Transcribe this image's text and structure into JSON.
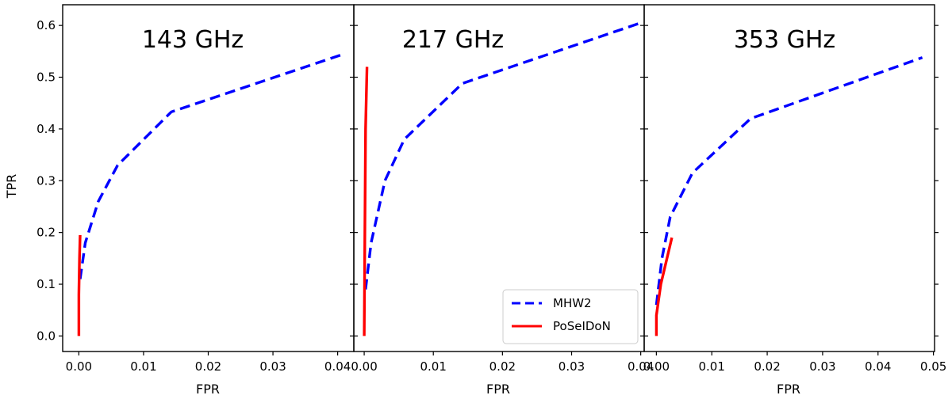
{
  "chart_data": [
    {
      "type": "line",
      "title": "143 GHz",
      "xlabel": "FPR",
      "ylabel": "TPR",
      "xlim": [
        -0.0025,
        0.0425
      ],
      "ylim": [
        -0.03,
        0.64
      ],
      "xticks": [
        0.0,
        0.01,
        0.02,
        0.03,
        0.04
      ],
      "xtick_labels": [
        "0.00",
        "0.01",
        "0.02",
        "0.03",
        "0.04"
      ],
      "yticks": [
        0.0,
        0.1,
        0.2,
        0.3,
        0.4,
        0.5,
        0.6
      ],
      "ytick_labels": [
        "0.0",
        "0.1",
        "0.2",
        "0.3",
        "0.4",
        "0.5",
        "0.6"
      ],
      "series": [
        {
          "name": "MHW2",
          "style": "dashed",
          "color": "#0000ff",
          "x": [
            0.0002,
            0.001,
            0.003,
            0.006,
            0.0143,
            0.041
          ],
          "y": [
            0.11,
            0.18,
            0.26,
            0.33,
            0.433,
            0.545
          ]
        },
        {
          "name": "PoSeIDoN",
          "style": "solid",
          "color": "#ff0000",
          "x": [
            0.0,
            0.0,
            0.0001,
            0.0002
          ],
          "y": [
            0.0,
            0.08,
            0.15,
            0.195
          ]
        }
      ]
    },
    {
      "type": "line",
      "title": "217 GHz",
      "xlabel": "FPR",
      "ylabel": "",
      "xlim": [
        -0.0015,
        0.0405
      ],
      "ylim": [
        -0.03,
        0.64
      ],
      "xticks": [
        0.0,
        0.01,
        0.02,
        0.03,
        0.04
      ],
      "xtick_labels": [
        "0.00",
        "0.01",
        "0.02",
        "0.03",
        "0.04"
      ],
      "yticks": [
        0.0,
        0.1,
        0.2,
        0.3,
        0.4,
        0.5,
        0.6
      ],
      "ytick_labels": [
        "",
        "",
        "",
        "",
        "",
        "",
        ""
      ],
      "legend": {
        "location": "lower right",
        "entries": [
          "MHW2",
          "PoSeIDoN"
        ]
      },
      "series": [
        {
          "name": "MHW2",
          "style": "dashed",
          "color": "#0000ff",
          "x": [
            0.0002,
            0.001,
            0.003,
            0.0058,
            0.0142,
            0.04
          ],
          "y": [
            0.09,
            0.18,
            0.3,
            0.38,
            0.488,
            0.605
          ]
        },
        {
          "name": "PoSeIDoN",
          "style": "solid",
          "color": "#ff0000",
          "x": [
            0.0,
            0.0001,
            0.0002,
            0.0004
          ],
          "y": [
            0.0,
            0.2,
            0.4,
            0.52
          ]
        }
      ]
    },
    {
      "type": "line",
      "title": "353 GHz",
      "xlabel": "FPR",
      "ylabel": "",
      "xlim": [
        -0.0022,
        0.0502
      ],
      "ylim": [
        -0.03,
        0.64
      ],
      "xticks": [
        0.0,
        0.01,
        0.02,
        0.03,
        0.04,
        0.05
      ],
      "xtick_labels": [
        "0.00",
        "0.01",
        "0.02",
        "0.03",
        "0.04",
        "0.05"
      ],
      "yticks": [
        0.0,
        0.1,
        0.2,
        0.3,
        0.4,
        0.5,
        0.6
      ],
      "ytick_labels": [
        "",
        "",
        "",
        "",
        "",
        "",
        ""
      ],
      "series": [
        {
          "name": "MHW2",
          "style": "dashed",
          "color": "#0000ff",
          "x": [
            0.0,
            0.001,
            0.0025,
            0.0065,
            0.017,
            0.048
          ],
          "y": [
            0.06,
            0.15,
            0.23,
            0.315,
            0.42,
            0.538
          ]
        },
        {
          "name": "PoSeIDoN",
          "style": "solid",
          "color": "#ff0000",
          "x": [
            0.0,
            0.0,
            0.0008,
            0.0028
          ],
          "y": [
            0.0,
            0.04,
            0.1,
            0.19
          ]
        }
      ]
    }
  ]
}
